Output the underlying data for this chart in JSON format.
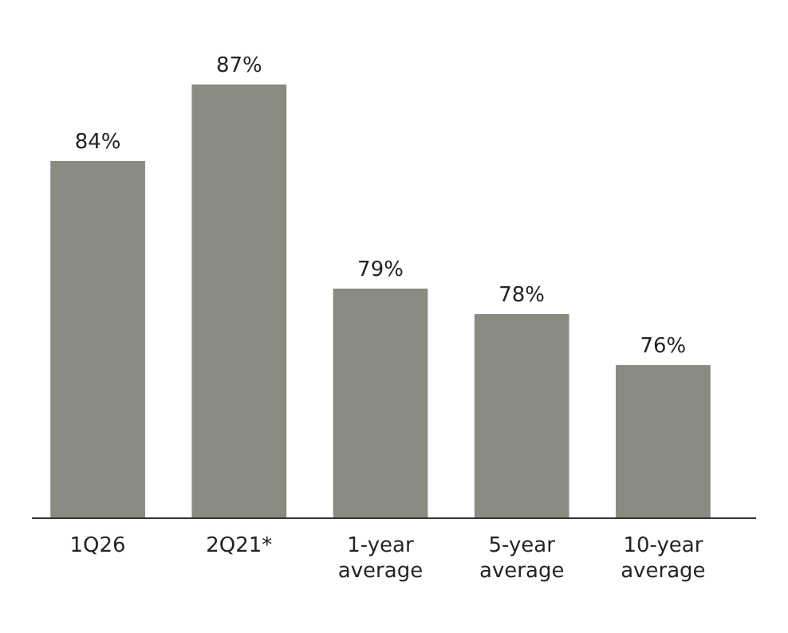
{
  "chart_data": {
    "type": "bar",
    "categories": [
      "1Q26",
      "2Q21*",
      "1-year average",
      "5-year average",
      "10-year average"
    ],
    "values": [
      84,
      87,
      79,
      78,
      76
    ],
    "color": "#8a8a80",
    "ylim": [
      70,
      87
    ],
    "tick_labels": "x",
    "value_labels": [
      "84%",
      "87%",
      "79%",
      "78%",
      "76%"
    ]
  }
}
